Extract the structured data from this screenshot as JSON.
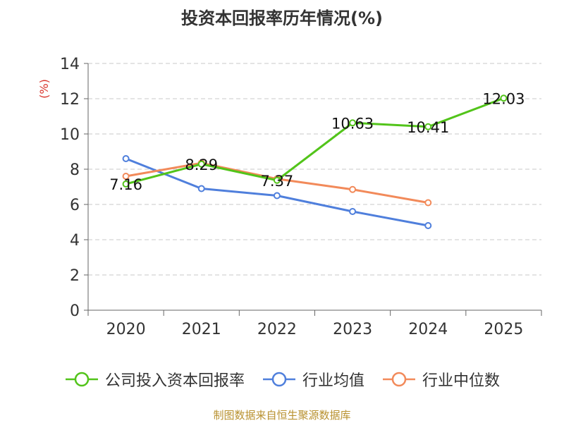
{
  "chart_data": {
    "type": "line",
    "title": "投资本回报率历年情况(%)",
    "ylabel": "(%)",
    "xlabel": "",
    "categories": [
      "2020",
      "2021",
      "2022",
      "2023",
      "2024",
      "2025"
    ],
    "ylim": [
      0,
      14
    ],
    "yticks": [
      "0",
      "2",
      "4",
      "6",
      "8",
      "10",
      "12",
      "14"
    ],
    "grid": true,
    "legend_position": "bottom",
    "series": [
      {
        "name": "公司投入资本回报率",
        "color": "#52c41a",
        "values": [
          7.16,
          8.29,
          7.37,
          10.63,
          10.41,
          12.03
        ],
        "labels": [
          "7.16",
          "8.29",
          "7.37",
          "10.63",
          "10.41",
          "12.03"
        ]
      },
      {
        "name": "行业均值",
        "color": "#4f7fdc",
        "values": [
          8.6,
          6.9,
          6.5,
          5.6,
          4.8,
          null
        ]
      },
      {
        "name": "行业中位数",
        "color": "#f28a5a",
        "values": [
          7.6,
          8.35,
          7.45,
          6.85,
          6.1,
          null
        ]
      }
    ]
  },
  "source_text": "制图数据来自恒生聚源数据库"
}
